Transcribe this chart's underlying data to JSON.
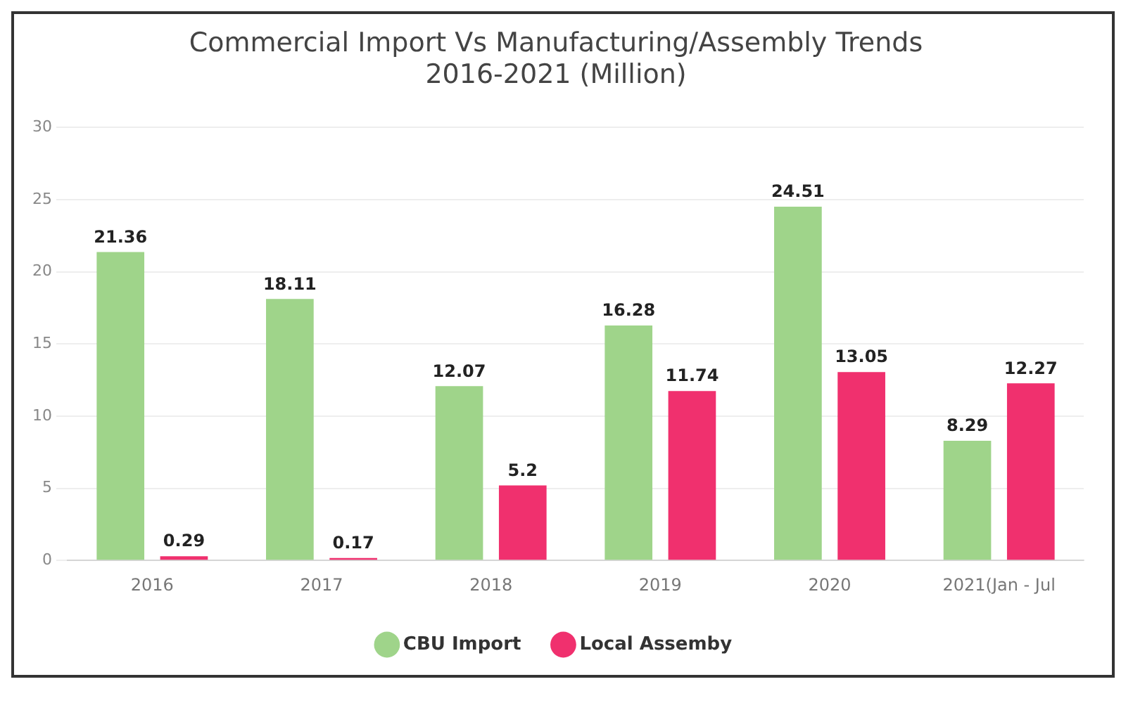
{
  "chart_data": {
    "type": "bar",
    "title": "Commercial Import Vs Manufacturing/Assembly Trends\n2016-2021 (Million)",
    "categories": [
      "2016",
      "2017",
      "2018",
      "2019",
      "2020",
      "2021(Jan - Jul"
    ],
    "series": [
      {
        "name": "CBU Import",
        "color": "#9fd48a",
        "values": [
          21.36,
          18.11,
          12.07,
          16.28,
          24.51,
          8.29
        ]
      },
      {
        "name": "Local Assemby",
        "color": "#f0306e",
        "values": [
          0.29,
          0.17,
          5.2,
          11.74,
          13.05,
          12.27
        ]
      }
    ],
    "ylim": [
      0,
      30
    ],
    "yticks": [
      0,
      5,
      10,
      15,
      20,
      25,
      30
    ],
    "grid": "y",
    "legend": "bottom",
    "data_labels": true
  }
}
